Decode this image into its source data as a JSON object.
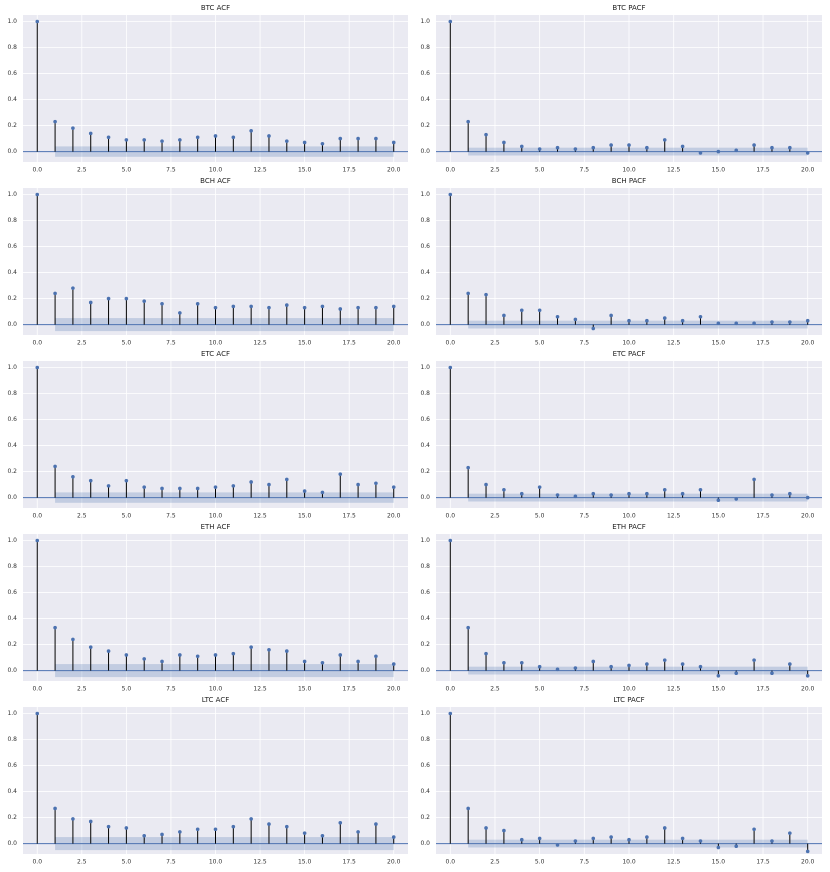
{
  "chart_data": [
    {
      "type": "stem",
      "title": "BTC ACF",
      "x": [
        0,
        1,
        2,
        3,
        4,
        5,
        6,
        7,
        8,
        9,
        10,
        11,
        12,
        13,
        14,
        15,
        16,
        17,
        18,
        19,
        20
      ],
      "values": [
        1,
        0.23,
        0.18,
        0.14,
        0.11,
        0.09,
        0.09,
        0.08,
        0.09,
        0.11,
        0.12,
        0.11,
        0.16,
        0.12,
        0.08,
        0.07,
        0.06,
        0.1,
        0.1,
        0.1,
        0.07
      ],
      "confidence": 0.04,
      "color": "#4c72b0",
      "xlim": [
        -0.8,
        20.8
      ],
      "ylim": [
        -0.08,
        1.05
      ],
      "xticks": [
        {
          "value": 0,
          "label": "0.0"
        },
        {
          "value": 2.5,
          "label": "2.5"
        },
        {
          "value": 5,
          "label": "5.0"
        },
        {
          "value": 7.5,
          "label": "7.5"
        },
        {
          "value": 10,
          "label": "10.0"
        },
        {
          "value": 12.5,
          "label": "12.5"
        },
        {
          "value": 15,
          "label": "15.0"
        },
        {
          "value": 17.5,
          "label": "17.5"
        },
        {
          "value": 20,
          "label": "20.0"
        }
      ],
      "yticks": [
        {
          "value": 0,
          "label": "0.0"
        },
        {
          "value": 0.2,
          "label": "0.2"
        },
        {
          "value": 0.4,
          "label": "0.4"
        },
        {
          "value": 0.6,
          "label": "0.6"
        },
        {
          "value": 0.8,
          "label": "0.8"
        },
        {
          "value": 1,
          "label": "1.0"
        }
      ],
      "grid": true
    },
    {
      "type": "stem",
      "title": "BTC PACF",
      "x": [
        0,
        1,
        2,
        3,
        4,
        5,
        6,
        7,
        8,
        9,
        10,
        11,
        12,
        13,
        14,
        15,
        16,
        17,
        18,
        19,
        20
      ],
      "values": [
        1,
        0.23,
        0.13,
        0.07,
        0.04,
        0.02,
        0.03,
        0.02,
        0.03,
        0.05,
        0.05,
        0.03,
        0.09,
        0.04,
        -0.01,
        0,
        0.01,
        0.05,
        0.03,
        0.03,
        -0.01
      ],
      "confidence": 0.03,
      "color": "#4c72b0",
      "xlim": [
        -0.8,
        20.8
      ],
      "ylim": [
        -0.08,
        1.05
      ],
      "xticks": [
        {
          "value": 0,
          "label": "0.0"
        },
        {
          "value": 2.5,
          "label": "2.5"
        },
        {
          "value": 5,
          "label": "5.0"
        },
        {
          "value": 7.5,
          "label": "7.5"
        },
        {
          "value": 10,
          "label": "10.0"
        },
        {
          "value": 12.5,
          "label": "12.5"
        },
        {
          "value": 15,
          "label": "15.0"
        },
        {
          "value": 17.5,
          "label": "17.5"
        },
        {
          "value": 20,
          "label": "20.0"
        }
      ],
      "yticks": [
        {
          "value": 0,
          "label": "0.0"
        },
        {
          "value": 0.2,
          "label": "0.2"
        },
        {
          "value": 0.4,
          "label": "0.4"
        },
        {
          "value": 0.6,
          "label": "0.6"
        },
        {
          "value": 0.8,
          "label": "0.8"
        },
        {
          "value": 1,
          "label": "1.0"
        }
      ],
      "grid": true
    },
    {
      "type": "stem",
      "title": "BCH ACF",
      "x": [
        0,
        1,
        2,
        3,
        4,
        5,
        6,
        7,
        8,
        9,
        10,
        11,
        12,
        13,
        14,
        15,
        16,
        17,
        18,
        19,
        20
      ],
      "values": [
        1,
        0.24,
        0.28,
        0.17,
        0.2,
        0.2,
        0.18,
        0.16,
        0.09,
        0.16,
        0.13,
        0.14,
        0.14,
        0.13,
        0.15,
        0.13,
        0.14,
        0.12,
        0.13,
        0.13,
        0.14
      ],
      "confidence": 0.05,
      "color": "#4c72b0",
      "xlim": [
        -0.8,
        20.8
      ],
      "ylim": [
        -0.08,
        1.05
      ],
      "xticks": [
        {
          "value": 0,
          "label": "0.0"
        },
        {
          "value": 2.5,
          "label": "2.5"
        },
        {
          "value": 5,
          "label": "5.0"
        },
        {
          "value": 7.5,
          "label": "7.5"
        },
        {
          "value": 10,
          "label": "10.0"
        },
        {
          "value": 12.5,
          "label": "12.5"
        },
        {
          "value": 15,
          "label": "15.0"
        },
        {
          "value": 17.5,
          "label": "17.5"
        },
        {
          "value": 20,
          "label": "20.0"
        }
      ],
      "yticks": [
        {
          "value": 0,
          "label": "0.0"
        },
        {
          "value": 0.2,
          "label": "0.2"
        },
        {
          "value": 0.4,
          "label": "0.4"
        },
        {
          "value": 0.6,
          "label": "0.6"
        },
        {
          "value": 0.8,
          "label": "0.8"
        },
        {
          "value": 1,
          "label": "1.0"
        }
      ],
      "grid": true
    },
    {
      "type": "stem",
      "title": "BCH PACF",
      "x": [
        0,
        1,
        2,
        3,
        4,
        5,
        6,
        7,
        8,
        9,
        10,
        11,
        12,
        13,
        14,
        15,
        16,
        17,
        18,
        19,
        20
      ],
      "values": [
        1,
        0.24,
        0.23,
        0.07,
        0.11,
        0.11,
        0.06,
        0.04,
        -0.03,
        0.07,
        0.03,
        0.03,
        0.05,
        0.03,
        0.06,
        0.01,
        0.01,
        0.01,
        0.02,
        0.02,
        0.03
      ],
      "confidence": 0.03,
      "color": "#4c72b0",
      "xlim": [
        -0.8,
        20.8
      ],
      "ylim": [
        -0.08,
        1.05
      ],
      "xticks": [
        {
          "value": 0,
          "label": "0.0"
        },
        {
          "value": 2.5,
          "label": "2.5"
        },
        {
          "value": 5,
          "label": "5.0"
        },
        {
          "value": 7.5,
          "label": "7.5"
        },
        {
          "value": 10,
          "label": "10.0"
        },
        {
          "value": 12.5,
          "label": "12.5"
        },
        {
          "value": 15,
          "label": "15.0"
        },
        {
          "value": 17.5,
          "label": "17.5"
        },
        {
          "value": 20,
          "label": "20.0"
        }
      ],
      "yticks": [
        {
          "value": 0,
          "label": "0.0"
        },
        {
          "value": 0.2,
          "label": "0.2"
        },
        {
          "value": 0.4,
          "label": "0.4"
        },
        {
          "value": 0.6,
          "label": "0.6"
        },
        {
          "value": 0.8,
          "label": "0.8"
        },
        {
          "value": 1,
          "label": "1.0"
        }
      ],
      "grid": true
    },
    {
      "type": "stem",
      "title": "ETC ACF",
      "x": [
        0,
        1,
        2,
        3,
        4,
        5,
        6,
        7,
        8,
        9,
        10,
        11,
        12,
        13,
        14,
        15,
        16,
        17,
        18,
        19,
        20
      ],
      "values": [
        1,
        0.24,
        0.16,
        0.13,
        0.09,
        0.13,
        0.08,
        0.07,
        0.07,
        0.07,
        0.08,
        0.09,
        0.12,
        0.1,
        0.14,
        0.05,
        0.04,
        0.18,
        0.1,
        0.11,
        0.08
      ],
      "confidence": 0.04,
      "color": "#4c72b0",
      "xlim": [
        -0.8,
        20.8
      ],
      "ylim": [
        -0.08,
        1.05
      ],
      "xticks": [
        {
          "value": 0,
          "label": "0.0"
        },
        {
          "value": 2.5,
          "label": "2.5"
        },
        {
          "value": 5,
          "label": "5.0"
        },
        {
          "value": 7.5,
          "label": "7.5"
        },
        {
          "value": 10,
          "label": "10.0"
        },
        {
          "value": 12.5,
          "label": "12.5"
        },
        {
          "value": 15,
          "label": "15.0"
        },
        {
          "value": 17.5,
          "label": "17.5"
        },
        {
          "value": 20,
          "label": "20.0"
        }
      ],
      "yticks": [
        {
          "value": 0,
          "label": "0.0"
        },
        {
          "value": 0.2,
          "label": "0.2"
        },
        {
          "value": 0.4,
          "label": "0.4"
        },
        {
          "value": 0.6,
          "label": "0.6"
        },
        {
          "value": 0.8,
          "label": "0.8"
        },
        {
          "value": 1,
          "label": "1.0"
        }
      ],
      "grid": true
    },
    {
      "type": "stem",
      "title": "ETC PACF",
      "x": [
        0,
        1,
        2,
        3,
        4,
        5,
        6,
        7,
        8,
        9,
        10,
        11,
        12,
        13,
        14,
        15,
        16,
        17,
        18,
        19,
        20
      ],
      "values": [
        1,
        0.23,
        0.1,
        0.06,
        0.03,
        0.08,
        0.02,
        0.01,
        0.03,
        0.02,
        0.03,
        0.03,
        0.06,
        0.03,
        0.06,
        -0.02,
        -0.01,
        0.14,
        0.02,
        0.03,
        0
      ],
      "confidence": 0.03,
      "color": "#4c72b0",
      "xlim": [
        -0.8,
        20.8
      ],
      "ylim": [
        -0.08,
        1.05
      ],
      "xticks": [
        {
          "value": 0,
          "label": "0.0"
        },
        {
          "value": 2.5,
          "label": "2.5"
        },
        {
          "value": 5,
          "label": "5.0"
        },
        {
          "value": 7.5,
          "label": "7.5"
        },
        {
          "value": 10,
          "label": "10.0"
        },
        {
          "value": 12.5,
          "label": "12.5"
        },
        {
          "value": 15,
          "label": "15.0"
        },
        {
          "value": 17.5,
          "label": "17.5"
        },
        {
          "value": 20,
          "label": "20.0"
        }
      ],
      "yticks": [
        {
          "value": 0,
          "label": "0.0"
        },
        {
          "value": 0.2,
          "label": "0.2"
        },
        {
          "value": 0.4,
          "label": "0.4"
        },
        {
          "value": 0.6,
          "label": "0.6"
        },
        {
          "value": 0.8,
          "label": "0.8"
        },
        {
          "value": 1,
          "label": "1.0"
        }
      ],
      "grid": true
    },
    {
      "type": "stem",
      "title": "ETH ACF",
      "x": [
        0,
        1,
        2,
        3,
        4,
        5,
        6,
        7,
        8,
        9,
        10,
        11,
        12,
        13,
        14,
        15,
        16,
        17,
        18,
        19,
        20
      ],
      "values": [
        1,
        0.33,
        0.24,
        0.18,
        0.15,
        0.12,
        0.09,
        0.07,
        0.12,
        0.11,
        0.12,
        0.13,
        0.18,
        0.16,
        0.15,
        0.07,
        0.06,
        0.12,
        0.07,
        0.11,
        0.05
      ],
      "confidence": 0.05,
      "color": "#4c72b0",
      "xlim": [
        -0.8,
        20.8
      ],
      "ylim": [
        -0.08,
        1.05
      ],
      "xticks": [
        {
          "value": 0,
          "label": "0.0"
        },
        {
          "value": 2.5,
          "label": "2.5"
        },
        {
          "value": 5,
          "label": "5.0"
        },
        {
          "value": 7.5,
          "label": "7.5"
        },
        {
          "value": 10,
          "label": "10.0"
        },
        {
          "value": 12.5,
          "label": "12.5"
        },
        {
          "value": 15,
          "label": "15.0"
        },
        {
          "value": 17.5,
          "label": "17.5"
        },
        {
          "value": 20,
          "label": "20.0"
        }
      ],
      "yticks": [
        {
          "value": 0,
          "label": "0.0"
        },
        {
          "value": 0.2,
          "label": "0.2"
        },
        {
          "value": 0.4,
          "label": "0.4"
        },
        {
          "value": 0.6,
          "label": "0.6"
        },
        {
          "value": 0.8,
          "label": "0.8"
        },
        {
          "value": 1,
          "label": "1.0"
        }
      ],
      "grid": true
    },
    {
      "type": "stem",
      "title": "ETH PACF",
      "x": [
        0,
        1,
        2,
        3,
        4,
        5,
        6,
        7,
        8,
        9,
        10,
        11,
        12,
        13,
        14,
        15,
        16,
        17,
        18,
        19,
        20
      ],
      "values": [
        1,
        0.33,
        0.13,
        0.06,
        0.06,
        0.03,
        0.01,
        0.02,
        0.07,
        0.03,
        0.04,
        0.05,
        0.08,
        0.05,
        0.03,
        -0.04,
        -0.02,
        0.08,
        -0.02,
        0.05,
        -0.04
      ],
      "confidence": 0.03,
      "color": "#4c72b0",
      "xlim": [
        -0.8,
        20.8
      ],
      "ylim": [
        -0.08,
        1.05
      ],
      "xticks": [
        {
          "value": 0,
          "label": "0.0"
        },
        {
          "value": 2.5,
          "label": "2.5"
        },
        {
          "value": 5,
          "label": "5.0"
        },
        {
          "value": 7.5,
          "label": "7.5"
        },
        {
          "value": 10,
          "label": "10.0"
        },
        {
          "value": 12.5,
          "label": "12.5"
        },
        {
          "value": 15,
          "label": "15.0"
        },
        {
          "value": 17.5,
          "label": "17.5"
        },
        {
          "value": 20,
          "label": "20.0"
        }
      ],
      "yticks": [
        {
          "value": 0,
          "label": "0.0"
        },
        {
          "value": 0.2,
          "label": "0.2"
        },
        {
          "value": 0.4,
          "label": "0.4"
        },
        {
          "value": 0.6,
          "label": "0.6"
        },
        {
          "value": 0.8,
          "label": "0.8"
        },
        {
          "value": 1,
          "label": "1.0"
        }
      ],
      "grid": true
    },
    {
      "type": "stem",
      "title": "LTC ACF",
      "x": [
        0,
        1,
        2,
        3,
        4,
        5,
        6,
        7,
        8,
        9,
        10,
        11,
        12,
        13,
        14,
        15,
        16,
        17,
        18,
        19,
        20
      ],
      "values": [
        1,
        0.27,
        0.19,
        0.17,
        0.13,
        0.12,
        0.06,
        0.07,
        0.09,
        0.11,
        0.11,
        0.13,
        0.19,
        0.15,
        0.13,
        0.08,
        0.06,
        0.16,
        0.09,
        0.15,
        0.05
      ],
      "confidence": 0.05,
      "color": "#4c72b0",
      "xlim": [
        -0.8,
        20.8
      ],
      "ylim": [
        -0.08,
        1.05
      ],
      "xticks": [
        {
          "value": 0,
          "label": "0.0"
        },
        {
          "value": 2.5,
          "label": "2.5"
        },
        {
          "value": 5,
          "label": "5.0"
        },
        {
          "value": 7.5,
          "label": "7.5"
        },
        {
          "value": 10,
          "label": "10.0"
        },
        {
          "value": 12.5,
          "label": "12.5"
        },
        {
          "value": 15,
          "label": "15.0"
        },
        {
          "value": 17.5,
          "label": "17.5"
        },
        {
          "value": 20,
          "label": "20.0"
        }
      ],
      "yticks": [
        {
          "value": 0,
          "label": "0.0"
        },
        {
          "value": 0.2,
          "label": "0.2"
        },
        {
          "value": 0.4,
          "label": "0.4"
        },
        {
          "value": 0.6,
          "label": "0.6"
        },
        {
          "value": 0.8,
          "label": "0.8"
        },
        {
          "value": 1,
          "label": "1.0"
        }
      ],
      "grid": true
    },
    {
      "type": "stem",
      "title": "LTC PACF",
      "x": [
        0,
        1,
        2,
        3,
        4,
        5,
        6,
        7,
        8,
        9,
        10,
        11,
        12,
        13,
        14,
        15,
        16,
        17,
        18,
        19,
        20
      ],
      "values": [
        1,
        0.27,
        0.12,
        0.1,
        0.03,
        0.04,
        -0.01,
        0.02,
        0.04,
        0.05,
        0.03,
        0.05,
        0.12,
        0.04,
        0.02,
        -0.03,
        -0.02,
        0.11,
        0.02,
        0.08,
        -0.06
      ],
      "confidence": 0.03,
      "color": "#4c72b0",
      "xlim": [
        -0.8,
        20.8
      ],
      "ylim": [
        -0.08,
        1.05
      ],
      "xticks": [
        {
          "value": 0,
          "label": "0.0"
        },
        {
          "value": 2.5,
          "label": "2.5"
        },
        {
          "value": 5,
          "label": "5.0"
        },
        {
          "value": 7.5,
          "label": "7.5"
        },
        {
          "value": 10,
          "label": "10.0"
        },
        {
          "value": 12.5,
          "label": "12.5"
        },
        {
          "value": 15,
          "label": "15.0"
        },
        {
          "value": 17.5,
          "label": "17.5"
        },
        {
          "value": 20,
          "label": "20.0"
        }
      ],
      "yticks": [
        {
          "value": 0,
          "label": "0.0"
        },
        {
          "value": 0.2,
          "label": "0.2"
        },
        {
          "value": 0.4,
          "label": "0.4"
        },
        {
          "value": 0.6,
          "label": "0.6"
        },
        {
          "value": 0.8,
          "label": "0.8"
        },
        {
          "value": 1,
          "label": "1.0"
        }
      ],
      "grid": true
    }
  ]
}
